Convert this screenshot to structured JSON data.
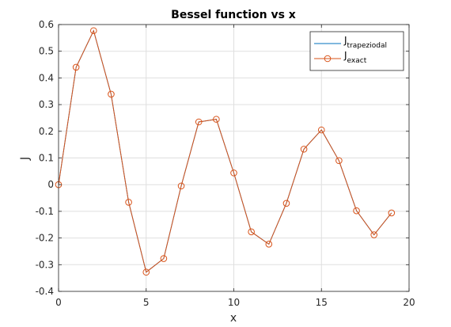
{
  "chart_data": {
    "type": "line",
    "title": "Bessel function vs x",
    "xlabel": "x",
    "ylabel": "J",
    "xlim": [
      0,
      20
    ],
    "ylim": [
      -0.4,
      0.6
    ],
    "xticks": [
      0,
      5,
      10,
      15,
      20
    ],
    "yticks": [
      -0.4,
      -0.3,
      -0.2,
      -0.1,
      0,
      0.1,
      0.2,
      0.3,
      0.4,
      0.5,
      0.6
    ],
    "grid": true,
    "legend_position": "top-right",
    "x": [
      0,
      1,
      2,
      3,
      4,
      5,
      6,
      7,
      8,
      9,
      10,
      11,
      12,
      13,
      14,
      15,
      16,
      17,
      18,
      19
    ],
    "series": [
      {
        "name": "J_trapeziodal",
        "legend_main": "J",
        "legend_sub": "trapeziodal",
        "color": "#0072bd",
        "marker": "none",
        "values": [
          0.0,
          0.44,
          0.577,
          0.339,
          -0.066,
          -0.328,
          -0.277,
          -0.005,
          0.235,
          0.245,
          0.044,
          -0.177,
          -0.223,
          -0.07,
          0.133,
          0.205,
          0.09,
          -0.098,
          -0.188,
          -0.106
        ]
      },
      {
        "name": "J_exact",
        "legend_main": "J",
        "legend_sub": "exact",
        "color": "#d95319",
        "marker": "circle",
        "values": [
          0.0,
          0.44,
          0.577,
          0.339,
          -0.066,
          -0.328,
          -0.277,
          -0.005,
          0.235,
          0.245,
          0.044,
          -0.177,
          -0.223,
          -0.07,
          0.133,
          0.205,
          0.09,
          -0.098,
          -0.188,
          -0.106
        ]
      }
    ]
  }
}
